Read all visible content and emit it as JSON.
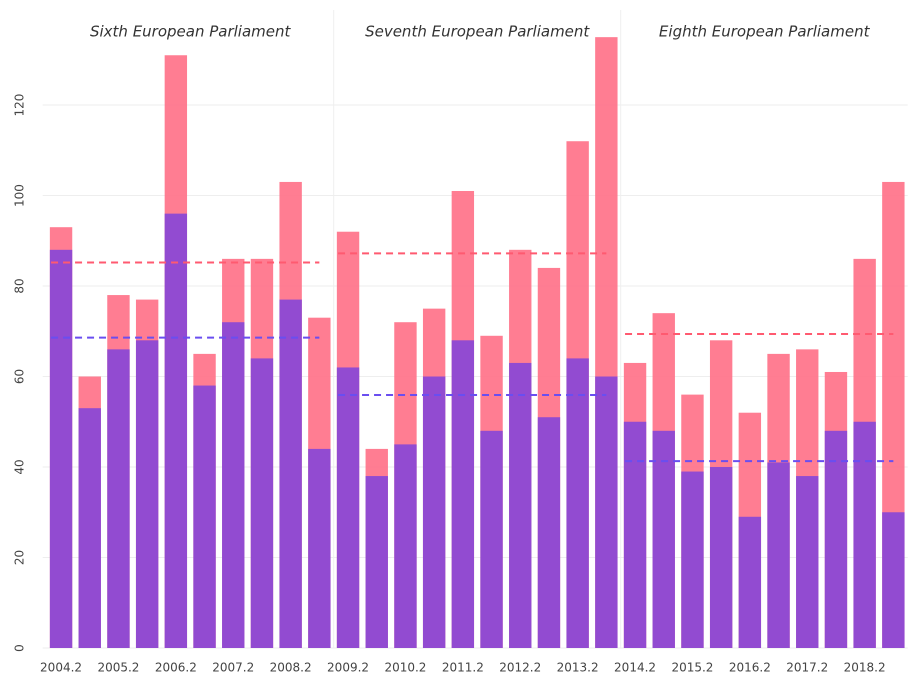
{
  "chart_data": {
    "type": "bar",
    "categories": [
      "2004.2",
      null,
      "2005.2",
      null,
      "2006.2",
      null,
      "2007.2",
      null,
      "2008.2",
      null,
      "2009.2",
      null,
      "2010.2",
      null,
      "2011.2",
      null,
      "2012.2",
      null,
      "2013.2",
      null,
      "2014.2",
      null,
      "2015.2",
      null,
      "2016.2",
      null,
      "2017.2",
      null,
      "2018.2",
      null
    ],
    "series": [
      {
        "color": "#ff6f86",
        "values": [
          93,
          60,
          78,
          77,
          131,
          65,
          86,
          86,
          103,
          73,
          92,
          44,
          72,
          75,
          101,
          69,
          88,
          84,
          112,
          135,
          63,
          74,
          56,
          68,
          52,
          65,
          66,
          61,
          86,
          103
        ]
      },
      {
        "color": "#8646d8",
        "values": [
          88,
          53,
          66,
          68,
          96,
          58,
          72,
          64,
          77,
          44,
          62,
          38,
          45,
          60,
          68,
          48,
          63,
          51,
          64,
          60,
          50,
          48,
          39,
          40,
          29,
          41,
          38,
          48,
          50,
          30
        ]
      }
    ],
    "periods": [
      {
        "label": "Sixth European Parliament",
        "range": [
          0,
          9
        ],
        "averages": [
          85.2,
          68.6
        ]
      },
      {
        "label": "Seventh European Parliament",
        "range": [
          10,
          19
        ],
        "averages": [
          87.2,
          55.9
        ]
      },
      {
        "label": "Eighth European Parliament",
        "range": [
          20,
          29
        ],
        "averages": [
          69.4,
          41.3
        ]
      }
    ],
    "average_colors": [
      "#ff5a70",
      "#6a4ef0"
    ],
    "ylim": [
      0,
      141
    ],
    "yticks": [
      0,
      20,
      40,
      60,
      80,
      100,
      120
    ],
    "grid": true
  }
}
